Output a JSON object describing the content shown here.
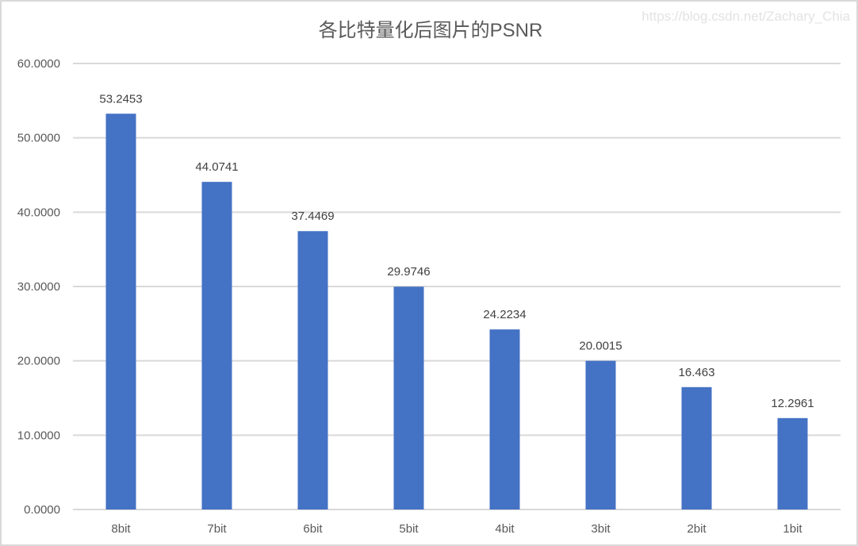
{
  "chart_data": {
    "type": "bar",
    "title": "各比特量化后图片的PSNR",
    "xlabel": "",
    "ylabel": "",
    "categories": [
      "8bit",
      "7bit",
      "6bit",
      "5bit",
      "4bit",
      "3bit",
      "2bit",
      "1bit"
    ],
    "values": [
      53.2453,
      44.0741,
      37.4469,
      29.9746,
      24.2234,
      20.0015,
      16.463,
      12.2961
    ],
    "data_labels": [
      "53.2453",
      "44.0741",
      "37.4469",
      "29.9746",
      "24.2234",
      "20.0015",
      "16.463",
      "12.2961"
    ],
    "ylim": [
      0,
      60
    ],
    "yticks": [
      0,
      10,
      20,
      30,
      40,
      50,
      60
    ],
    "ytick_labels": [
      "0.0000",
      "10.0000",
      "20.0000",
      "30.0000",
      "40.0000",
      "50.0000",
      "60.0000"
    ],
    "grid": true,
    "legend": "none",
    "bar_color": "#4472c4",
    "grid_color": "#d9d9d9"
  },
  "watermark": "https://blog.csdn.net/Zachary_Chia"
}
